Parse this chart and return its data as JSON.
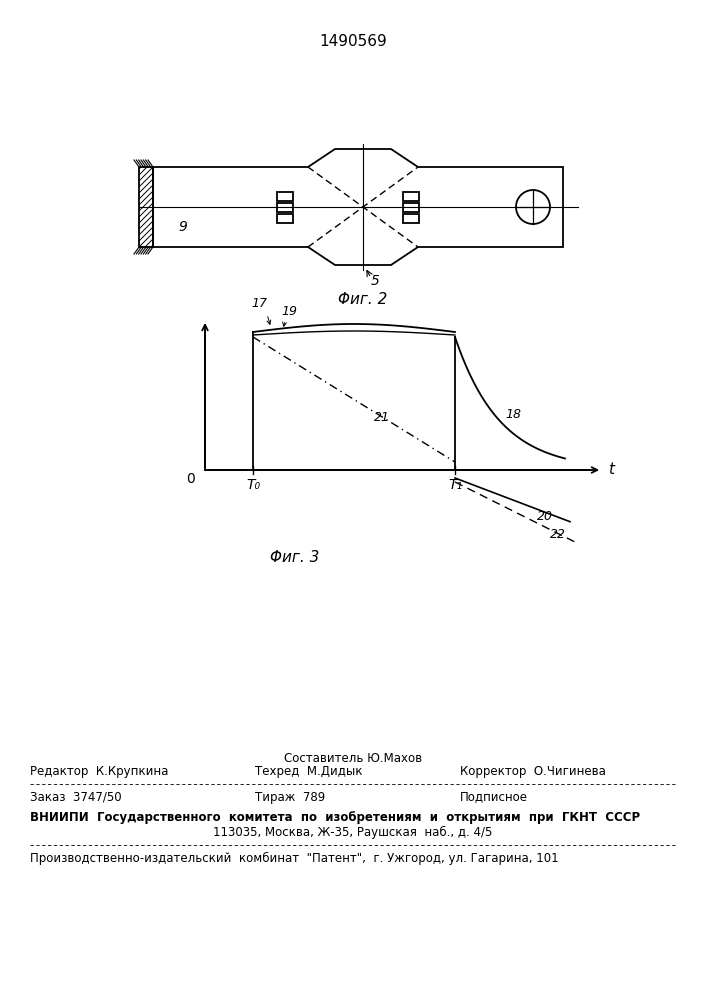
{
  "patent_number": "1490569",
  "fig2_caption": "Φиг. 2",
  "fig3_caption": "Φиг. 3",
  "label_9": "9",
  "label_5": "5",
  "label_17": "17",
  "label_18": "18",
  "label_19": "19",
  "label_20": "20",
  "label_21": "21",
  "label_22": "22",
  "label_t": "t",
  "label_0": "0",
  "label_T0": "T₀",
  "label_T1": "T₁",
  "footer_line1_center": "Составитель Ю.Махов",
  "footer_line2_left": "Редактор  К.Крупкина",
  "footer_line2_center": "Техред  М.Дидык",
  "footer_line2_right": "Корректор  О.Чигинева",
  "footer_line3_left": "Заказ  3747/50",
  "footer_line3_center": "Тираж  789",
  "footer_line3_right": "Подписное",
  "footer_line4": "ВНИИПИ  Государственного  комитета  по  изобретениям  и  открытиям  при  ГКНТ  СССР",
  "footer_line5": "113035, Москва, Ж-35, Раушская  наб., д. 4/5",
  "footer_line6": "Производственно-издательский  комбинат  \"Патент\",  г. Ужгород, ул. Гагарина, 101",
  "line_color": "#000000",
  "fig_color": "#ffffff"
}
